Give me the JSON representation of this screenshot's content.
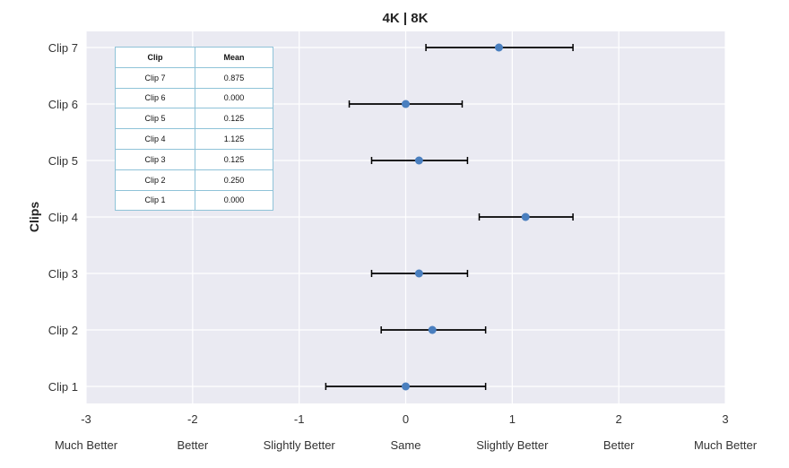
{
  "chart_data": {
    "type": "scatter",
    "title": "4K | 8K",
    "ylabel": "Clips",
    "xlabel": "",
    "xlim": [
      -3,
      3
    ],
    "x_ticks": [
      "-3",
      "-2",
      "-1",
      "0",
      "1",
      "2",
      "3"
    ],
    "x_tick_values": [
      -3,
      -2,
      -1,
      0,
      1,
      2,
      3
    ],
    "x_category_labels": [
      "Much Better",
      "Better",
      "Slightly Better",
      "Same",
      "Slightly Better",
      "Better",
      "Much Better"
    ],
    "categories": [
      "Clip 1",
      "Clip 2",
      "Clip 3",
      "Clip 4",
      "Clip 5",
      "Clip 6",
      "Clip 7"
    ],
    "means": [
      0.0,
      0.25,
      0.125,
      1.125,
      0.125,
      0.0,
      0.875
    ],
    "ci_low": [
      -0.75,
      -0.23,
      -0.32,
      0.69,
      -0.32,
      -0.53,
      0.19
    ],
    "ci_high": [
      0.75,
      0.75,
      0.58,
      1.57,
      0.58,
      0.53,
      1.57
    ],
    "grid": true,
    "colors": {
      "marker": "#4a7fbf",
      "errorbar": "#000000",
      "plot_bg": "#eaeaf2",
      "grid": "#ffffff"
    }
  },
  "table": {
    "headers": [
      "Clip",
      "Mean"
    ],
    "rows": [
      [
        "Clip 7",
        "0.875"
      ],
      [
        "Clip 6",
        "0.000"
      ],
      [
        "Clip 5",
        "0.125"
      ],
      [
        "Clip 4",
        "1.125"
      ],
      [
        "Clip 3",
        "0.125"
      ],
      [
        "Clip 2",
        "0.250"
      ],
      [
        "Clip 1",
        "0.000"
      ]
    ]
  }
}
